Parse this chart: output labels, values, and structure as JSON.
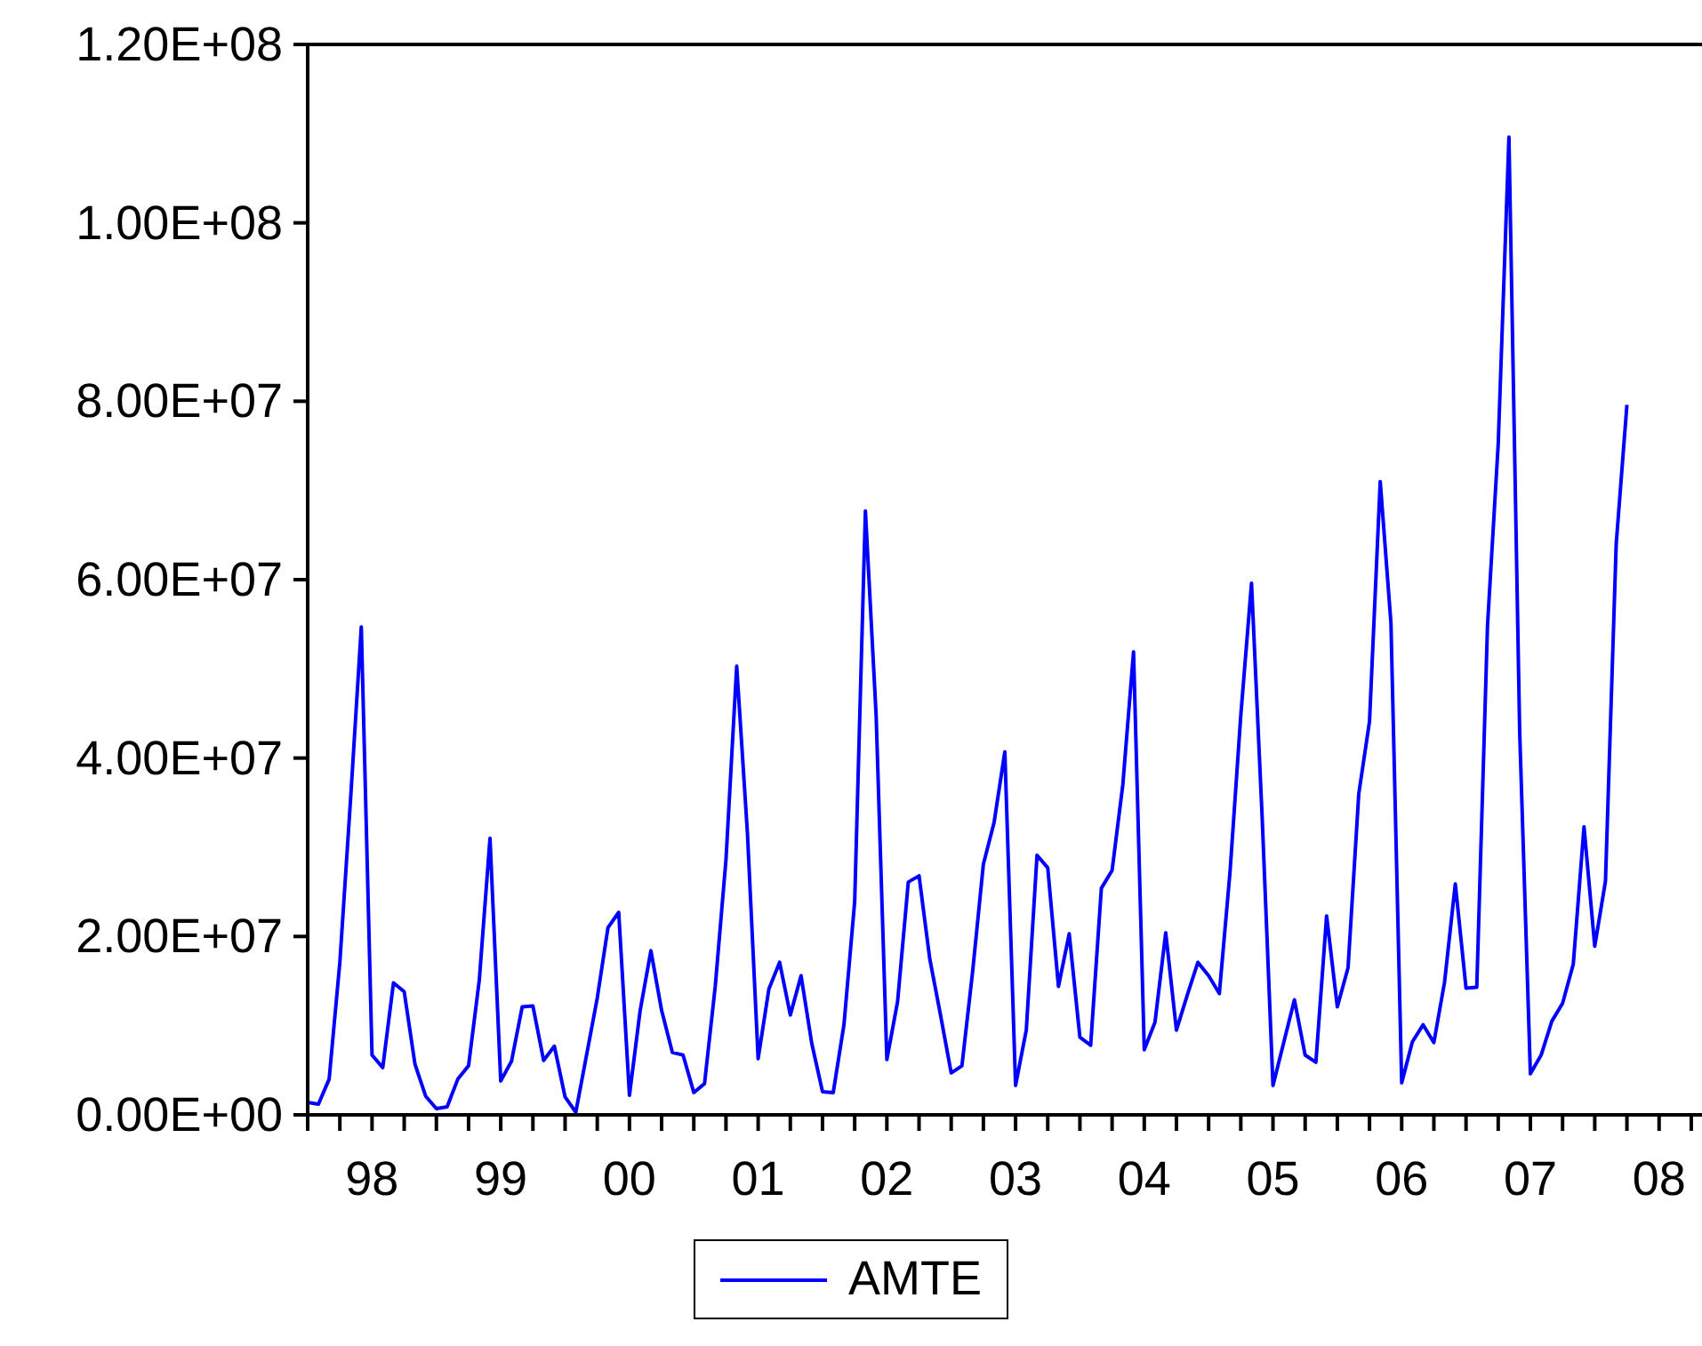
{
  "chart_data": {
    "type": "line",
    "x": [
      "1998-01",
      "1998-02",
      "1998-03",
      "1998-04",
      "1998-05",
      "1998-06",
      "1998-07",
      "1998-08",
      "1998-09",
      "1998-10",
      "1998-11",
      "1998-12",
      "1999-01",
      "1999-02",
      "1999-03",
      "1999-04",
      "1999-05",
      "1999-06",
      "1999-07",
      "1999-08",
      "1999-09",
      "1999-10",
      "1999-11",
      "1999-12",
      "2000-01",
      "2000-02",
      "2000-03",
      "2000-04",
      "2000-05",
      "2000-06",
      "2000-07",
      "2000-08",
      "2000-09",
      "2000-10",
      "2000-11",
      "2000-12",
      "2001-01",
      "2001-02",
      "2001-03",
      "2001-04",
      "2001-05",
      "2001-06",
      "2001-07",
      "2001-08",
      "2001-09",
      "2001-10",
      "2001-11",
      "2001-12",
      "2002-01",
      "2002-02",
      "2002-03",
      "2002-04",
      "2002-05",
      "2002-06",
      "2002-07",
      "2002-08",
      "2002-09",
      "2002-10",
      "2002-11",
      "2002-12",
      "2003-01",
      "2003-02",
      "2003-03",
      "2003-04",
      "2003-05",
      "2003-06",
      "2003-07",
      "2003-08",
      "2003-09",
      "2003-10",
      "2003-11",
      "2003-12",
      "2004-01",
      "2004-02",
      "2004-03",
      "2004-04",
      "2004-05",
      "2004-06",
      "2004-07",
      "2004-08",
      "2004-09",
      "2004-10",
      "2004-11",
      "2004-12",
      "2005-01",
      "2005-02",
      "2005-03",
      "2005-04",
      "2005-05",
      "2005-06",
      "2005-07",
      "2005-08",
      "2005-09",
      "2005-10",
      "2005-11",
      "2005-12",
      "2006-01",
      "2006-02",
      "2006-03",
      "2006-04",
      "2006-05",
      "2006-06",
      "2006-07",
      "2006-08",
      "2006-09",
      "2006-10",
      "2006-11",
      "2006-12",
      "2007-01",
      "2007-02",
      "2007-03",
      "2007-04",
      "2007-05",
      "2007-06",
      "2007-07",
      "2007-08",
      "2007-09",
      "2007-10",
      "2007-11",
      "2007-12",
      "2008-01",
      "2008-02",
      "2008-03",
      "2008-04"
    ],
    "series": [
      {
        "name": "AMTE",
        "color": "#0000ff",
        "values": [
          1400000,
          1200000,
          4000000,
          17100000,
          35400000,
          54700000,
          6700000,
          5300000,
          14800000,
          13800000,
          5700000,
          2100000,
          700000,
          900000,
          4000000,
          5500000,
          15100000,
          31000000,
          3800000,
          6000000,
          12100000,
          12200000,
          6100000,
          7700000,
          2000000,
          300000,
          6700000,
          13100000,
          21000000,
          22700000,
          2200000,
          11700000,
          18400000,
          11700000,
          7000000,
          6700000,
          2500000,
          3500000,
          14400000,
          28600000,
          50300000,
          31600000,
          6300000,
          14100000,
          17100000,
          11200000,
          15600000,
          8000000,
          2600000,
          2500000,
          10100000,
          23900000,
          67700000,
          44800000,
          6200000,
          12700000,
          26100000,
          26800000,
          17500000,
          11200000,
          4700000,
          5500000,
          16100000,
          28100000,
          32800000,
          40700000,
          3300000,
          9500000,
          29100000,
          27700000,
          14400000,
          20300000,
          8700000,
          7800000,
          25400000,
          27400000,
          37000000,
          51900000,
          7300000,
          10400000,
          20400000,
          9500000,
          13400000,
          17100000,
          15600000,
          13600000,
          27300000,
          44800000,
          59600000,
          33100000,
          3300000,
          8100000,
          12900000,
          6700000,
          5900000,
          22300000,
          12100000,
          16500000,
          36000000,
          44100000,
          71000000,
          55100000,
          3600000,
          8200000,
          10100000,
          8100000,
          14900000,
          25900000,
          14200000,
          14300000,
          54800000,
          75200000,
          109600000,
          43000000,
          4600000,
          6700000,
          10500000,
          12500000,
          16900000,
          32300000,
          18900000,
          26200000,
          64000000,
          79600000
        ]
      }
    ],
    "xlim": [
      "1998-01",
      "2008-11"
    ],
    "xticks": [
      {
        "value": "1998-01",
        "label": null
      },
      {
        "value": "1998-04",
        "label": null
      },
      {
        "value": "1998-07",
        "label": "98"
      },
      {
        "value": "1998-10",
        "label": null
      },
      {
        "value": "1999-01",
        "label": null
      },
      {
        "value": "1999-04",
        "label": null
      },
      {
        "value": "1999-07",
        "label": "99"
      },
      {
        "value": "1999-10",
        "label": null
      },
      {
        "value": "2000-01",
        "label": null
      },
      {
        "value": "2000-04",
        "label": null
      },
      {
        "value": "2000-07",
        "label": "00"
      },
      {
        "value": "2000-10",
        "label": null
      },
      {
        "value": "2001-01",
        "label": null
      },
      {
        "value": "2001-04",
        "label": null
      },
      {
        "value": "2001-07",
        "label": "01"
      },
      {
        "value": "2001-10",
        "label": null
      },
      {
        "value": "2002-01",
        "label": null
      },
      {
        "value": "2002-04",
        "label": null
      },
      {
        "value": "2002-07",
        "label": "02"
      },
      {
        "value": "2002-10",
        "label": null
      },
      {
        "value": "2003-01",
        "label": null
      },
      {
        "value": "2003-04",
        "label": null
      },
      {
        "value": "2003-07",
        "label": "03"
      },
      {
        "value": "2003-10",
        "label": null
      },
      {
        "value": "2004-01",
        "label": null
      },
      {
        "value": "2004-04",
        "label": null
      },
      {
        "value": "2004-07",
        "label": "04"
      },
      {
        "value": "2004-10",
        "label": null
      },
      {
        "value": "2005-01",
        "label": null
      },
      {
        "value": "2005-04",
        "label": null
      },
      {
        "value": "2005-07",
        "label": "05"
      },
      {
        "value": "2005-10",
        "label": null
      },
      {
        "value": "2006-01",
        "label": null
      },
      {
        "value": "2006-04",
        "label": null
      },
      {
        "value": "2006-07",
        "label": "06"
      },
      {
        "value": "2006-10",
        "label": null
      },
      {
        "value": "2007-01",
        "label": null
      },
      {
        "value": "2007-04",
        "label": null
      },
      {
        "value": "2007-07",
        "label": "07"
      },
      {
        "value": "2007-10",
        "label": null
      },
      {
        "value": "2008-01",
        "label": null
      },
      {
        "value": "2008-04",
        "label": null
      },
      {
        "value": "2008-07",
        "label": "08"
      },
      {
        "value": "2008-10",
        "label": null
      }
    ],
    "ylim": [
      0,
      120000000
    ],
    "yticks": [
      {
        "value": 0,
        "label": "0.00E+00"
      },
      {
        "value": 20000000,
        "label": "2.00E+07"
      },
      {
        "value": 40000000,
        "label": "4.00E+07"
      },
      {
        "value": 60000000,
        "label": "6.00E+07"
      },
      {
        "value": 80000000,
        "label": "8.00E+07"
      },
      {
        "value": 100000000,
        "label": "1.00E+08"
      },
      {
        "value": 120000000,
        "label": "1.20E+08"
      }
    ],
    "legend": "bottom"
  }
}
